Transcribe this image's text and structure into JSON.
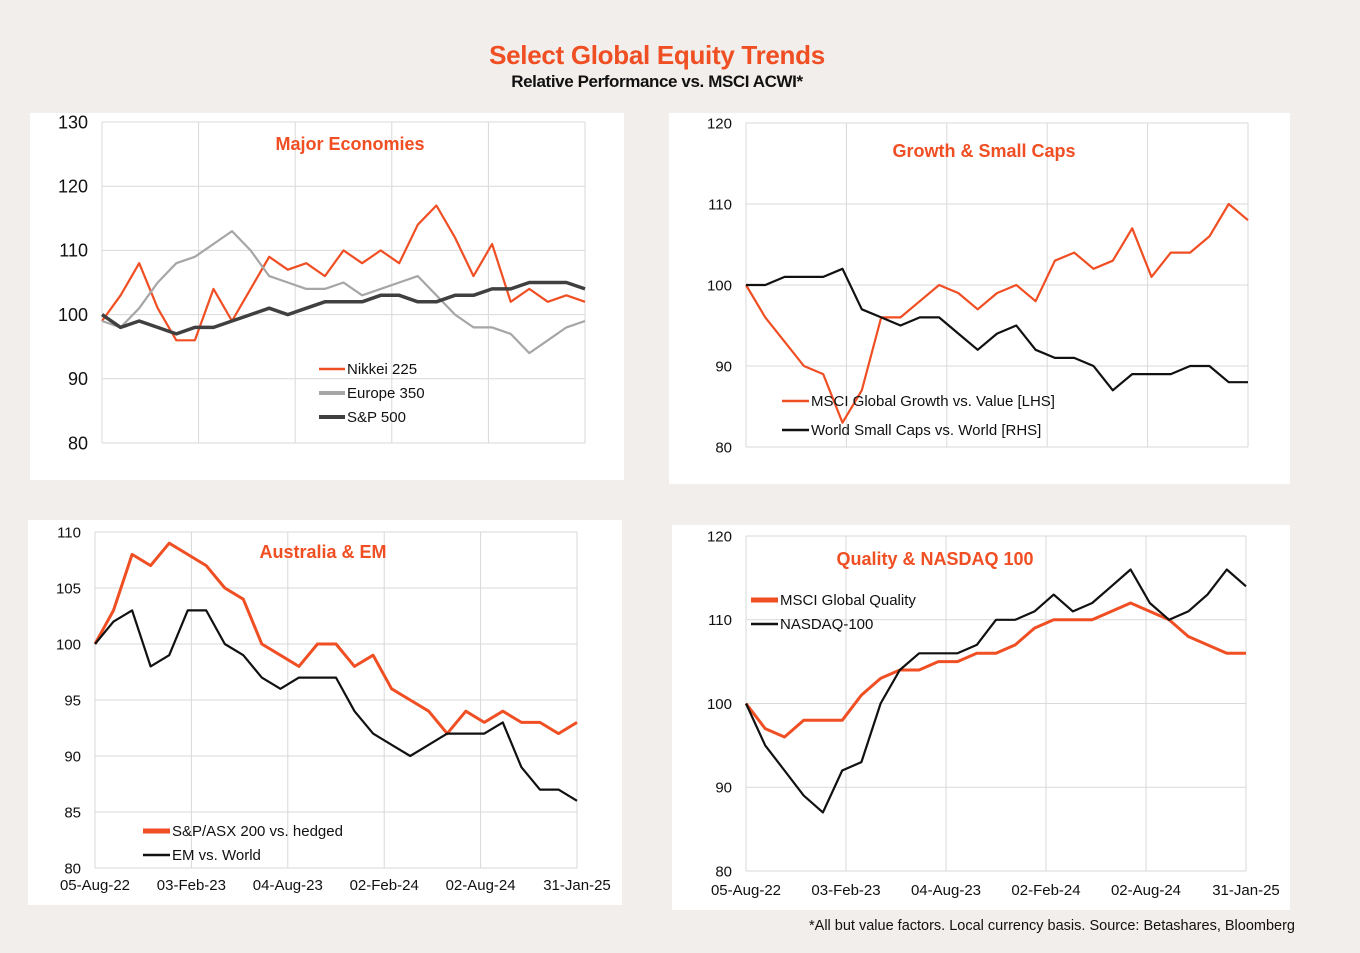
{
  "title": "Select Global Equity Trends",
  "subtitle": "Relative Performance vs. MSCI ACWI*",
  "footnote": "*All but value factors. Local currency basis.  Source: Betashares, Bloomberg",
  "colors": {
    "orange": "#f04e23",
    "grey": "#a6a6a6",
    "dark_grey": "#404040",
    "black": "#111111"
  },
  "chart_data": [
    {
      "type": "line",
      "title": "Major  Economies",
      "ylim": [
        80,
        130
      ],
      "yticks": [
        80,
        90,
        100,
        110,
        120,
        130
      ],
      "xticks": [],
      "xlim": [
        0,
        130
      ],
      "legend_position": "lower-center",
      "series": [
        {
          "name": "Nikkei 225",
          "color": "#f04e23",
          "x": [
            0,
            5,
            10,
            15,
            20,
            25,
            30,
            35,
            40,
            45,
            50,
            55,
            60,
            65,
            70,
            75,
            80,
            85,
            90,
            95,
            100,
            105,
            110,
            115,
            120,
            125,
            130
          ],
          "y": [
            99,
            103,
            108,
            101,
            96,
            96,
            104,
            99,
            104,
            109,
            107,
            108,
            106,
            110,
            108,
            110,
            108,
            114,
            117,
            112,
            106,
            111,
            102,
            104,
            102,
            103,
            102
          ]
        },
        {
          "name": "Europe 350",
          "color": "#a6a6a6",
          "x": [
            0,
            5,
            10,
            15,
            20,
            25,
            30,
            35,
            40,
            45,
            50,
            55,
            60,
            65,
            70,
            75,
            80,
            85,
            90,
            95,
            100,
            105,
            110,
            115,
            120,
            125,
            130
          ],
          "y": [
            99,
            98,
            101,
            105,
            108,
            109,
            111,
            113,
            110,
            106,
            105,
            104,
            104,
            105,
            103,
            104,
            105,
            106,
            103,
            100,
            98,
            98,
            97,
            94,
            96,
            98,
            99
          ]
        },
        {
          "name": "S&P 500",
          "color": "#404040",
          "x": [
            0,
            5,
            10,
            15,
            20,
            25,
            30,
            35,
            40,
            45,
            50,
            55,
            60,
            65,
            70,
            75,
            80,
            85,
            90,
            95,
            100,
            105,
            110,
            115,
            120,
            125,
            130
          ],
          "y": [
            100,
            98,
            99,
            98,
            97,
            98,
            98,
            99,
            100,
            101,
            100,
            101,
            102,
            102,
            102,
            103,
            103,
            102,
            102,
            103,
            103,
            104,
            104,
            105,
            105,
            105,
            104
          ]
        }
      ]
    },
    {
      "type": "line",
      "title": "Growth & Small Caps",
      "ylim": [
        80,
        120
      ],
      "yticks": [
        80,
        90,
        100,
        110,
        120
      ],
      "xticks": [],
      "xlim": [
        0,
        130
      ],
      "legend_position": "lower-center",
      "series": [
        {
          "name": "MSCI Global Growth vs. Value [LHS]",
          "color": "#f04e23",
          "x": [
            0,
            5,
            10,
            15,
            20,
            25,
            30,
            35,
            40,
            45,
            50,
            55,
            60,
            65,
            70,
            75,
            80,
            85,
            90,
            95,
            100,
            105,
            110,
            115,
            120,
            125,
            130
          ],
          "y": [
            100,
            96,
            93,
            90,
            89,
            83,
            87,
            96,
            96,
            98,
            100,
            99,
            97,
            99,
            100,
            98,
            103,
            104,
            102,
            103,
            107,
            101,
            104,
            104,
            106,
            110,
            108
          ]
        },
        {
          "name": "World Small Caps vs. World [RHS]",
          "color": "#111111",
          "x": [
            0,
            5,
            10,
            15,
            20,
            25,
            30,
            35,
            40,
            45,
            50,
            55,
            60,
            65,
            70,
            75,
            80,
            85,
            90,
            95,
            100,
            105,
            110,
            115,
            120,
            125,
            130
          ],
          "y": [
            100,
            100,
            101,
            101,
            101,
            102,
            97,
            96,
            95,
            96,
            96,
            94,
            92,
            94,
            95,
            92,
            91,
            91,
            90,
            87,
            89,
            89,
            89,
            90,
            90,
            88,
            88
          ]
        }
      ]
    },
    {
      "type": "line",
      "title": "Australia & EM",
      "ylim": [
        80,
        110
      ],
      "yticks": [
        80,
        85,
        90,
        95,
        100,
        105,
        110
      ],
      "xticks": [
        "05-Aug-22",
        "03-Feb-23",
        "04-Aug-23",
        "02-Feb-24",
        "02-Aug-24",
        "31-Jan-25"
      ],
      "xlim": [
        0,
        130
      ],
      "legend_position": "lower-left",
      "series": [
        {
          "name": "S&P/ASX 200 vs. hedged",
          "color": "#f04e23",
          "x": [
            0,
            5,
            10,
            15,
            20,
            25,
            30,
            35,
            40,
            45,
            50,
            55,
            60,
            65,
            70,
            75,
            80,
            85,
            90,
            95,
            100,
            105,
            110,
            115,
            120,
            125,
            130
          ],
          "y": [
            100,
            103,
            108,
            107,
            109,
            108,
            107,
            105,
            104,
            100,
            99,
            98,
            100,
            100,
            98,
            99,
            96,
            95,
            94,
            92,
            94,
            93,
            94,
            93,
            93,
            92,
            93
          ]
        },
        {
          "name": "EM vs. World",
          "color": "#111111",
          "x": [
            0,
            5,
            10,
            15,
            20,
            25,
            30,
            35,
            40,
            45,
            50,
            55,
            60,
            65,
            70,
            75,
            80,
            85,
            90,
            95,
            100,
            105,
            110,
            115,
            120,
            125,
            130
          ],
          "y": [
            100,
            102,
            103,
            98,
            99,
            103,
            103,
            100,
            99,
            97,
            96,
            97,
            97,
            97,
            94,
            92,
            91,
            90,
            91,
            92,
            92,
            92,
            93,
            89,
            87,
            87,
            86
          ]
        }
      ]
    },
    {
      "type": "line",
      "title": "Quality & NASDAQ 100",
      "ylim": [
        80,
        120
      ],
      "yticks": [
        80,
        90,
        100,
        110,
        120
      ],
      "xticks": [
        "05-Aug-22",
        "03-Feb-23",
        "04-Aug-23",
        "02-Feb-24",
        "02-Aug-24",
        "31-Jan-25"
      ],
      "xlim": [
        0,
        130
      ],
      "legend_position": "upper-left",
      "series": [
        {
          "name": "MSCI Global Quality",
          "color": "#f04e23",
          "x": [
            0,
            5,
            10,
            15,
            20,
            25,
            30,
            35,
            40,
            45,
            50,
            55,
            60,
            65,
            70,
            75,
            80,
            85,
            90,
            95,
            100,
            105,
            110,
            115,
            120,
            125,
            130
          ],
          "y": [
            100,
            97,
            96,
            98,
            98,
            98,
            101,
            103,
            104,
            104,
            105,
            105,
            106,
            106,
            107,
            109,
            110,
            110,
            110,
            111,
            112,
            111,
            110,
            108,
            107,
            106,
            106
          ]
        },
        {
          "name": "NASDAQ-100",
          "color": "#111111",
          "x": [
            0,
            5,
            10,
            15,
            20,
            25,
            30,
            35,
            40,
            45,
            50,
            55,
            60,
            65,
            70,
            75,
            80,
            85,
            90,
            95,
            100,
            105,
            110,
            115,
            120,
            125,
            130
          ],
          "y": [
            100,
            95,
            92,
            89,
            87,
            92,
            93,
            100,
            104,
            106,
            106,
            106,
            107,
            110,
            110,
            111,
            113,
            111,
            112,
            114,
            116,
            112,
            110,
            111,
            113,
            116,
            114
          ]
        }
      ]
    }
  ]
}
